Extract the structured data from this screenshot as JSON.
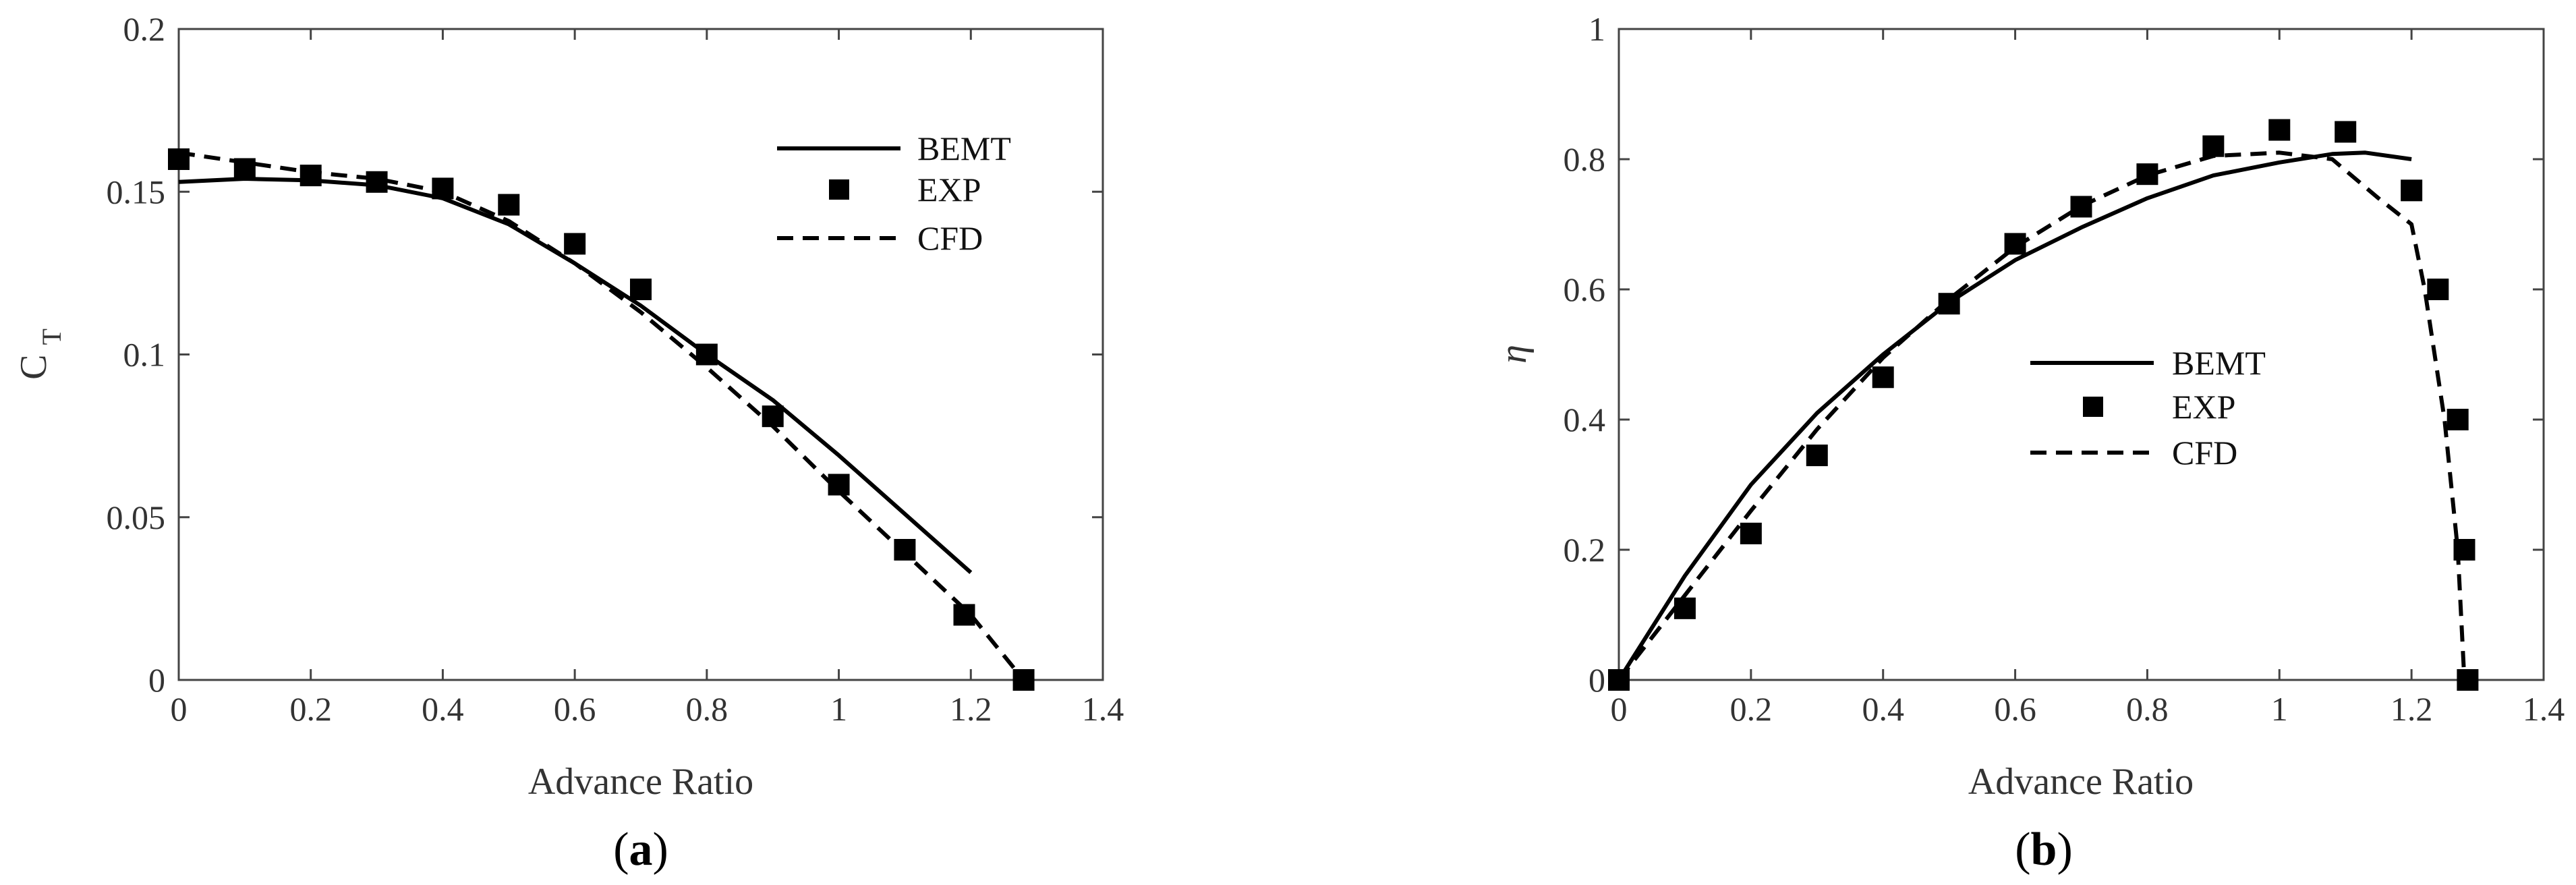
{
  "chart_data": [
    {
      "type": "line",
      "panel_label": "a",
      "title": "",
      "xlabel": "Advance Ratio",
      "ylabel_main": "C",
      "ylabel_sub": "T",
      "xlim": [
        0,
        1.4
      ],
      "ylim": [
        0,
        0.2
      ],
      "xticks": [
        "0",
        "0.2",
        "0.4",
        "0.6",
        "0.8",
        "1",
        "1.2",
        "1.4"
      ],
      "yticks": [
        "0",
        "0.05",
        "0.1",
        "0.15",
        "0.2"
      ],
      "grid": false,
      "legend_position": "top-right",
      "series": [
        {
          "name": "BEMT",
          "style": "solid-line",
          "x": [
            0,
            0.1,
            0.2,
            0.3,
            0.4,
            0.5,
            0.6,
            0.7,
            0.8,
            0.9,
            1.0,
            1.1,
            1.2
          ],
          "y": [
            0.153,
            0.154,
            0.1535,
            0.152,
            0.148,
            0.14,
            0.128,
            0.115,
            0.1,
            0.086,
            0.069,
            0.051,
            0.033
          ]
        },
        {
          "name": "EXP",
          "style": "square-marker",
          "x": [
            0,
            0.1,
            0.2,
            0.3,
            0.4,
            0.5,
            0.6,
            0.7,
            0.8,
            0.9,
            1.0,
            1.1,
            1.19,
            1.28
          ],
          "y": [
            0.16,
            0.157,
            0.155,
            0.153,
            0.151,
            0.146,
            0.134,
            0.12,
            0.1,
            0.081,
            0.06,
            0.04,
            0.02,
            0.0
          ]
        },
        {
          "name": "CFD",
          "style": "dashed-line",
          "x": [
            0,
            0.1,
            0.2,
            0.3,
            0.4,
            0.5,
            0.6,
            0.7,
            0.8,
            0.9,
            1.0,
            1.1,
            1.2,
            1.28
          ],
          "y": [
            0.162,
            0.159,
            0.156,
            0.154,
            0.15,
            0.141,
            0.128,
            0.113,
            0.096,
            0.078,
            0.058,
            0.039,
            0.02,
            0.0
          ]
        }
      ]
    },
    {
      "type": "line",
      "panel_label": "b",
      "title": "",
      "xlabel": "Advance Ratio",
      "ylabel": "η",
      "xlim": [
        0,
        1.4
      ],
      "ylim": [
        0,
        1
      ],
      "xticks": [
        "0",
        "0.2",
        "0.4",
        "0.6",
        "0.8",
        "1",
        "1.2",
        "1.4"
      ],
      "yticks": [
        "0",
        "0.2",
        "0.4",
        "0.6",
        "0.8",
        "1"
      ],
      "grid": false,
      "legend_position": "center-right",
      "series": [
        {
          "name": "BEMT",
          "style": "solid-line",
          "x": [
            0,
            0.1,
            0.2,
            0.3,
            0.4,
            0.5,
            0.6,
            0.7,
            0.8,
            0.9,
            1.0,
            1.08,
            1.13,
            1.2
          ],
          "y": [
            0.0,
            0.16,
            0.3,
            0.41,
            0.5,
            0.58,
            0.645,
            0.695,
            0.74,
            0.775,
            0.795,
            0.808,
            0.81,
            0.8
          ]
        },
        {
          "name": "EXP",
          "style": "square-marker",
          "x": [
            0,
            0.1,
            0.2,
            0.3,
            0.4,
            0.5,
            0.6,
            0.7,
            0.8,
            0.9,
            1.0,
            1.1,
            1.2,
            1.24,
            1.27,
            1.28,
            1.285
          ],
          "y": [
            0.0,
            0.11,
            0.225,
            0.345,
            0.465,
            0.578,
            0.67,
            0.727,
            0.777,
            0.82,
            0.845,
            0.842,
            0.752,
            0.6,
            0.4,
            0.2,
            0.0
          ]
        },
        {
          "name": "CFD",
          "style": "dashed-line",
          "x": [
            0,
            0.1,
            0.2,
            0.3,
            0.4,
            0.5,
            0.6,
            0.7,
            0.8,
            0.9,
            1.0,
            1.08,
            1.15,
            1.2,
            1.22,
            1.25,
            1.27,
            1.28
          ],
          "y": [
            0.0,
            0.13,
            0.26,
            0.385,
            0.495,
            0.585,
            0.665,
            0.728,
            0.775,
            0.805,
            0.81,
            0.8,
            0.74,
            0.7,
            0.6,
            0.4,
            0.2,
            0.0
          ]
        }
      ]
    }
  ]
}
